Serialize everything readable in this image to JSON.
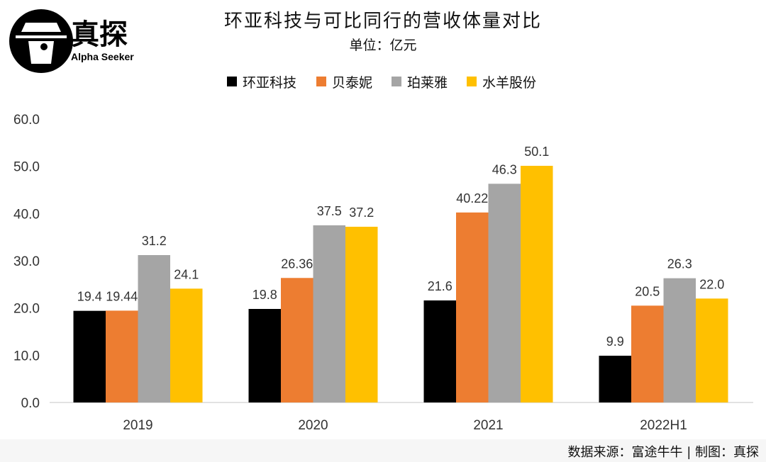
{
  "logo": {
    "name": "真探",
    "tagline": "Alpha Seeker"
  },
  "chart_data": {
    "type": "bar",
    "title": "环亚科技与可比同行的营收体量对比",
    "subtitle": "单位：亿元",
    "categories": [
      "2019",
      "2020",
      "2021",
      "2022H1"
    ],
    "series": [
      {
        "name": "环亚科技",
        "color": "#000000",
        "values": [
          19.4,
          19.8,
          21.6,
          9.9
        ],
        "labels": [
          "19.4",
          "19.8",
          "21.6",
          "9.9"
        ]
      },
      {
        "name": "贝泰妮",
        "color": "#ED7D31",
        "values": [
          19.44,
          26.36,
          40.22,
          20.5
        ],
        "labels": [
          "19.44",
          "26.36",
          "40.22",
          "20.5"
        ]
      },
      {
        "name": "珀莱雅",
        "color": "#A5A5A5",
        "values": [
          31.2,
          37.5,
          46.3,
          26.3
        ],
        "labels": [
          "31.2",
          "37.5",
          "46.3",
          "26.3"
        ]
      },
      {
        "name": "水羊股份",
        "color": "#FFC000",
        "values": [
          24.1,
          37.2,
          50.1,
          22.0
        ],
        "labels": [
          "24.1",
          "37.2",
          "50.1",
          "22.0"
        ]
      }
    ],
    "ylim": [
      0,
      60
    ],
    "yticks": [
      "0.0",
      "10.0",
      "20.0",
      "30.0",
      "40.0",
      "50.0",
      "60.0"
    ],
    "grid": false,
    "legend_position": "top"
  },
  "footer": {
    "source": "数据来源：富途牛牛 | 制图：真探"
  }
}
